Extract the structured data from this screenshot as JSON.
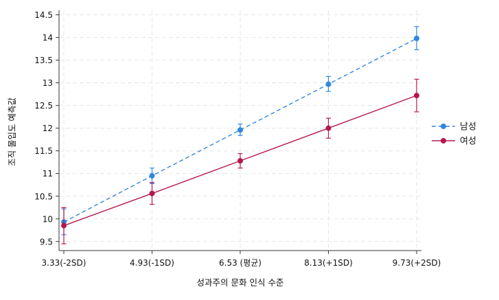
{
  "chart_data": {
    "type": "line",
    "title": "",
    "xlabel": "성과주의 문화 인식 수준",
    "ylabel": "조직 몰입도 예측값",
    "categories": [
      "3.33(-2SD)",
      "4.93(-1SD)",
      "6.53 (평균)",
      "8.13(+1SD)",
      "9.73(+2SD)"
    ],
    "ylim": [
      9.3,
      14.6
    ],
    "yticks": [
      9.5,
      10,
      10.5,
      11,
      11.5,
      12,
      12.5,
      13,
      13.5,
      14,
      14.5
    ],
    "ytick_labels": [
      "9.5",
      "10",
      "10.5",
      "11",
      "11.5",
      "12",
      "12.5",
      "13",
      "13.5",
      "14",
      "14.5"
    ],
    "grid": true,
    "legend_position": "right",
    "series": [
      {
        "name": "남성",
        "color": "#2f87e0",
        "line_style": "dashed",
        "values": [
          9.93,
          10.95,
          11.96,
          12.97,
          13.98
        ],
        "ci_low": [
          9.65,
          10.78,
          11.84,
          12.81,
          13.73
        ],
        "ci_high": [
          10.22,
          11.12,
          12.09,
          13.14,
          14.24
        ]
      },
      {
        "name": "여성",
        "color": "#b5174f",
        "line_style": "solid",
        "values": [
          9.85,
          10.56,
          11.28,
          12.0,
          12.72
        ],
        "ci_low": [
          9.45,
          10.32,
          11.12,
          11.78,
          12.36
        ],
        "ci_high": [
          10.25,
          10.8,
          11.44,
          12.22,
          13.08
        ]
      }
    ]
  }
}
